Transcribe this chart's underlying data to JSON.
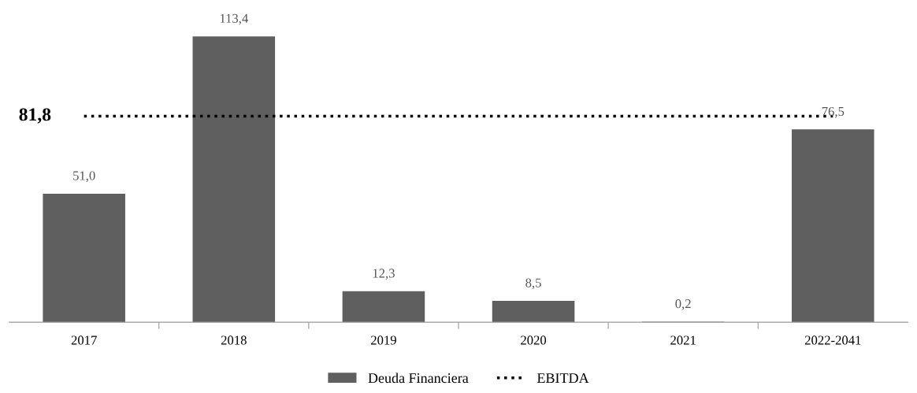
{
  "chart_data": {
    "type": "bar",
    "categories": [
      "2017",
      "2018",
      "2019",
      "2020",
      "2021",
      "2022-2041"
    ],
    "series": [
      {
        "name": "Deuda Financiera",
        "color": "#5f5f5f",
        "values": [
          51.0,
          113.4,
          12.3,
          8.5,
          0.2,
          76.5
        ],
        "value_labels": [
          "51,0",
          "113,4",
          "12,3",
          "8,5",
          "0,2",
          "76,5"
        ]
      },
      {
        "name": "EBITDA",
        "type": "line",
        "color": "#000000",
        "line_style": "dotted",
        "marker": "none",
        "values": [
          81.8,
          81.8,
          81.8,
          81.8,
          81.8,
          81.8
        ]
      }
    ],
    "annotations": [
      {
        "text": "81,8",
        "x": "2017",
        "y": 81.8
      }
    ],
    "legend": "bottom",
    "grid": false
  }
}
